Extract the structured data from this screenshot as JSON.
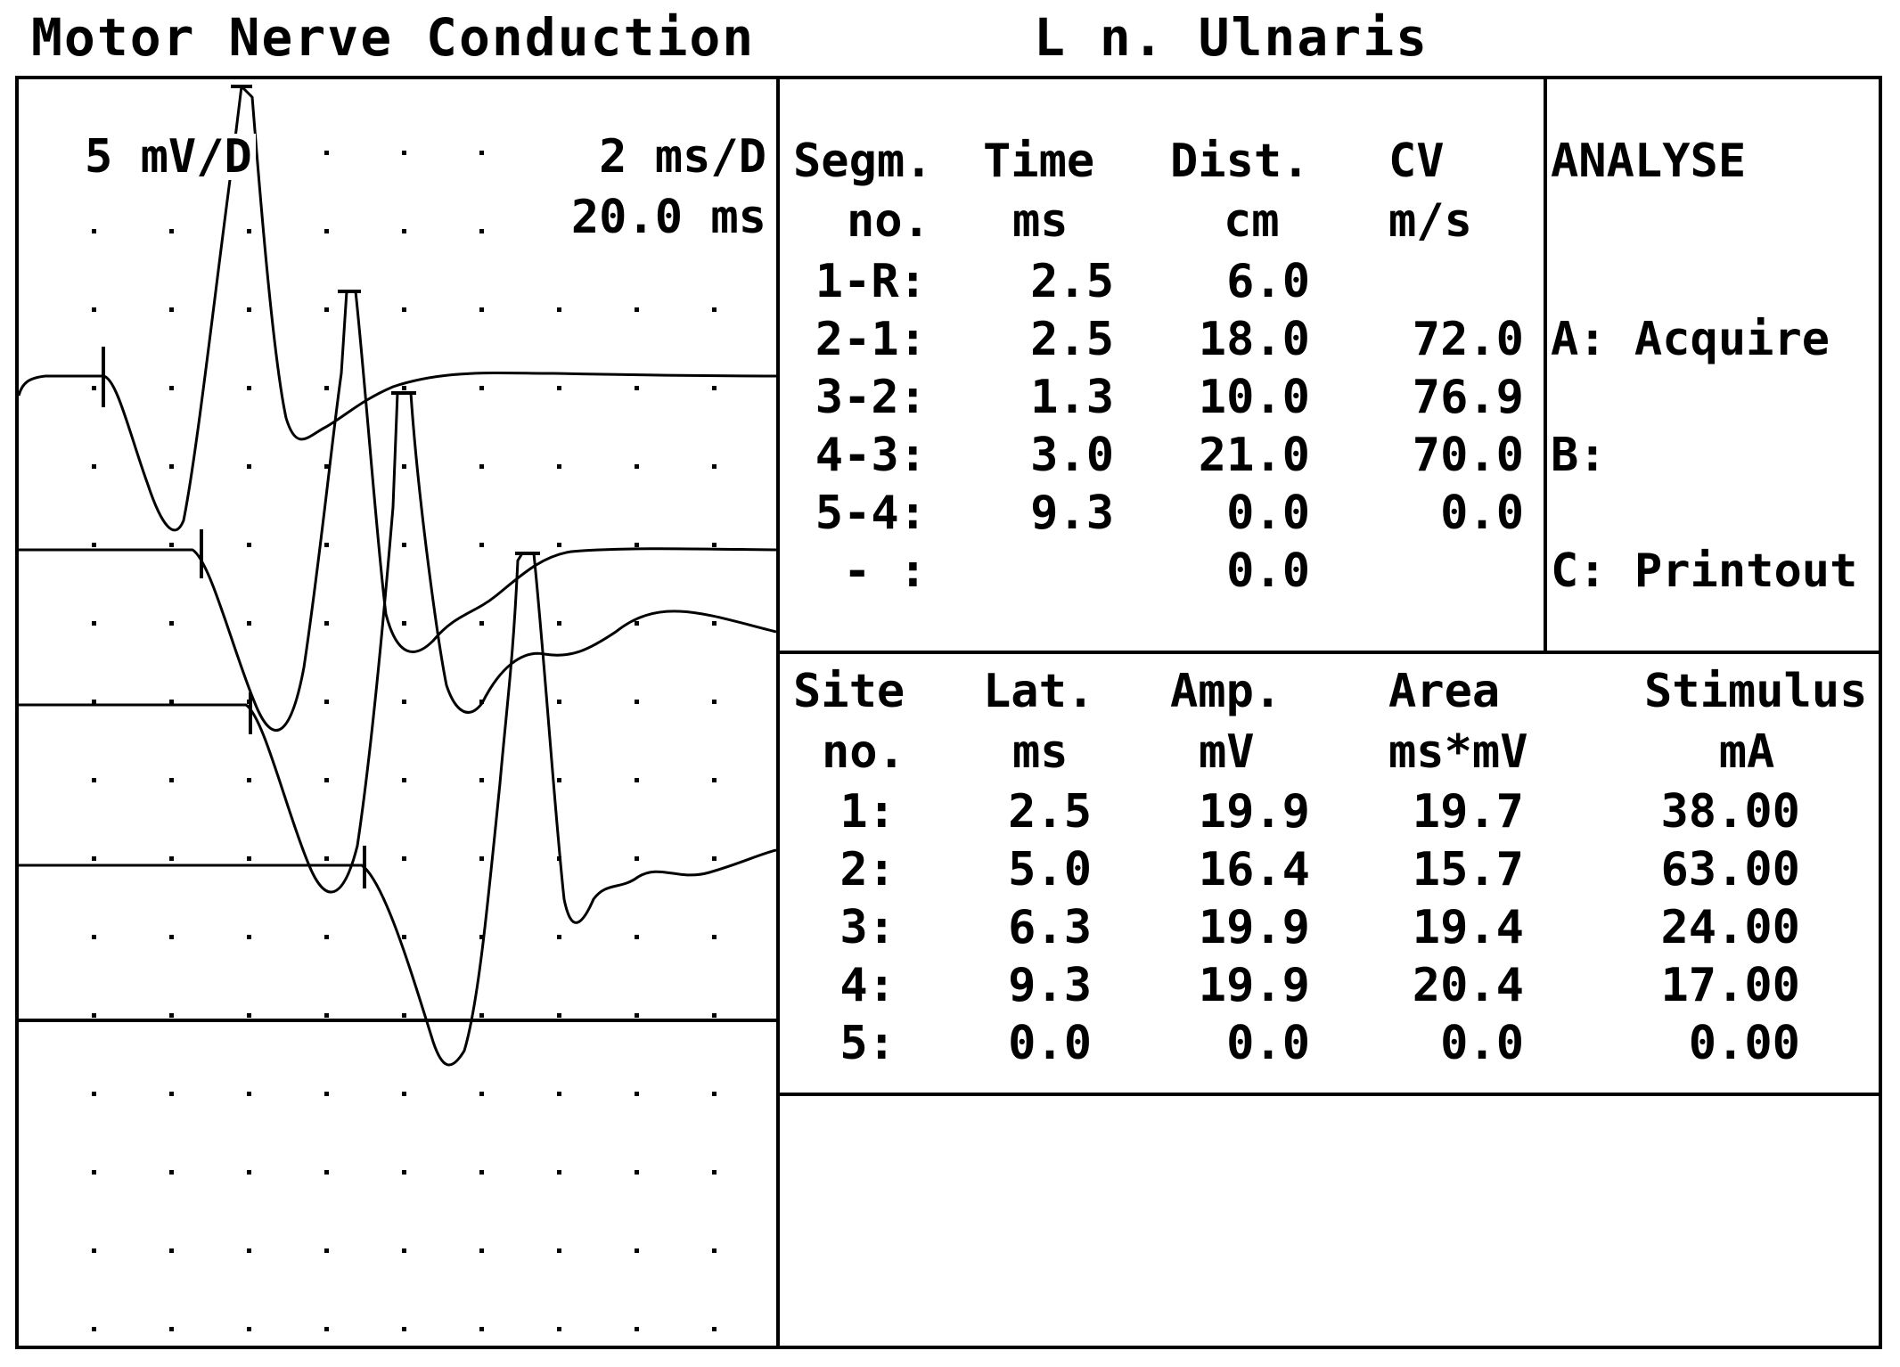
{
  "header": {
    "title": "Motor Nerve Conduction",
    "nerve": "L n. Ulnaris"
  },
  "trace_panel": {
    "amp_scale": "5 mV/D",
    "time_scale": "2 ms/D",
    "sweep": "20.0 ms"
  },
  "segment_table": {
    "headers": [
      {
        "line1": "Segm.",
        "line2": "no."
      },
      {
        "line1": "Time",
        "line2": "ms"
      },
      {
        "line1": "Dist.",
        "line2": "cm"
      },
      {
        "line1": "CV",
        "line2": "m/s"
      }
    ],
    "rows": [
      {
        "segm": "1-R:",
        "time": "2.5",
        "dist": "6.0",
        "cv": ""
      },
      {
        "segm": "2-1:",
        "time": "2.5",
        "dist": "18.0",
        "cv": "72.0"
      },
      {
        "segm": "3-2:",
        "time": "1.3",
        "dist": "10.0",
        "cv": "76.9"
      },
      {
        "segm": "4-3:",
        "time": "3.0",
        "dist": "21.0",
        "cv": "70.0"
      },
      {
        "segm": "5-4:",
        "time": "9.3",
        "dist": "0.0",
        "cv": "0.0"
      },
      {
        "segm": "- :",
        "time": "",
        "dist": "0.0",
        "cv": ""
      }
    ]
  },
  "menu": {
    "title": "ANALYSE",
    "items": [
      "A: Acquire",
      "B:",
      "C: Printout"
    ]
  },
  "site_table": {
    "headers": [
      {
        "line1": "Site",
        "line2": "no."
      },
      {
        "line1": "Lat.",
        "line2": "ms"
      },
      {
        "line1": "Amp.",
        "line2": "mV"
      },
      {
        "line1": "Area",
        "line2": "ms*mV"
      },
      {
        "line1": "Stimulus",
        "line2": "mA"
      }
    ],
    "rows": [
      {
        "site": "1:",
        "lat": "2.5",
        "amp": "19.9",
        "area": "19.7",
        "stim": "38.00"
      },
      {
        "site": "2:",
        "lat": "5.0",
        "amp": "16.4",
        "area": "15.7",
        "stim": "63.00"
      },
      {
        "site": "3:",
        "lat": "6.3",
        "amp": "19.9",
        "area": "19.4",
        "stim": "24.00"
      },
      {
        "site": "4:",
        "lat": "9.3",
        "amp": "19.9",
        "area": "20.4",
        "stim": "17.00"
      },
      {
        "site": "5:",
        "lat": "0.0",
        "amp": "0.0",
        "area": "0.0",
        "stim": "0.00"
      }
    ]
  }
}
